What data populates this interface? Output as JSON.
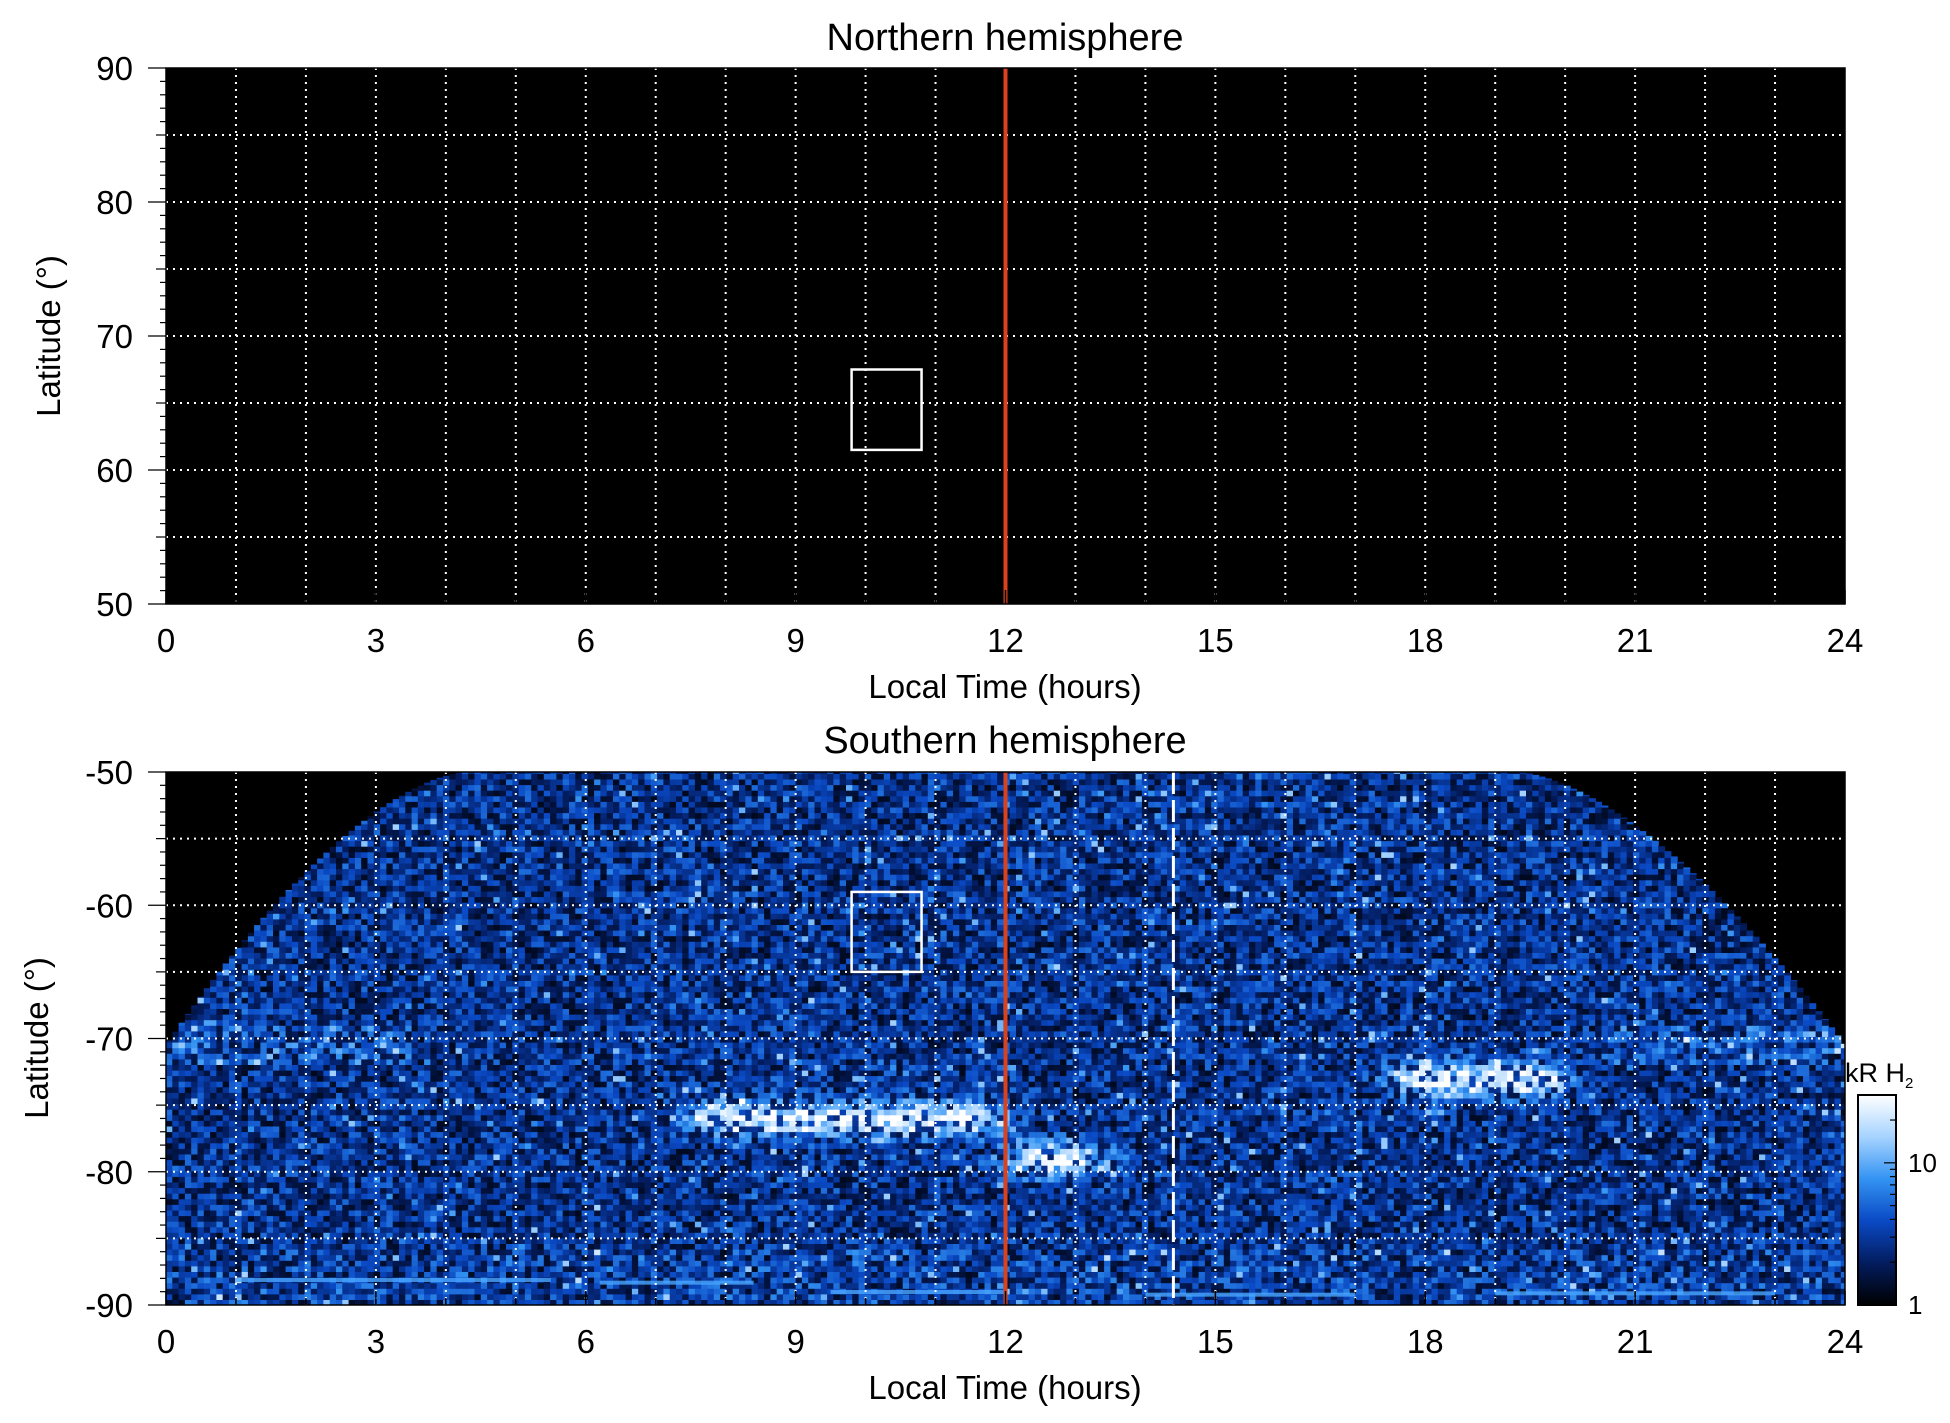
{
  "chart_data": [
    {
      "type": "heatmap",
      "title": "Northern hemisphere",
      "xlabel": "Local Time (hours)",
      "ylabel": "Latitude (°)",
      "xlim": [
        0,
        24
      ],
      "ylim": [
        50,
        90
      ],
      "x_ticks": [
        "0",
        "3",
        "6",
        "9",
        "12",
        "15",
        "18",
        "21",
        "24"
      ],
      "y_ticks": [
        "50",
        "60",
        "70",
        "80",
        "90"
      ],
      "y_tick_values": [
        50,
        60,
        70,
        80,
        90
      ],
      "grid": true,
      "background": "#000000",
      "noon_line_x": 12,
      "noon_line_color": "#d9421e",
      "box": {
        "x": [
          9.8,
          10.8
        ],
        "y": [
          61.5,
          67.5
        ]
      },
      "data": "no emission"
    },
    {
      "type": "heatmap",
      "title": "Southern hemisphere",
      "xlabel": "Local Time (hours)",
      "ylabel": "Latitude (°)",
      "xlim": [
        0,
        24
      ],
      "ylim": [
        -90,
        -50
      ],
      "x_ticks": [
        "0",
        "3",
        "6",
        "9",
        "12",
        "15",
        "18",
        "21",
        "24"
      ],
      "y_ticks": [
        "-50",
        "-60",
        "-70",
        "-80",
        "-90"
      ],
      "y_tick_values": [
        -50,
        -60,
        -70,
        -80,
        -90
      ],
      "grid": true,
      "noon_line_x": 12,
      "noon_line_color": "#d9421e",
      "dashed_line_x": 14.4,
      "box": {
        "x": [
          9.8,
          10.8
        ],
        "y": [
          -65,
          -59
        ]
      },
      "colorbar": {
        "label": "kR H",
        "label_subscript": "2",
        "ticks": [
          "1",
          "10"
        ],
        "tick_values": [
          1,
          10
        ],
        "range": [
          1,
          30
        ],
        "scale": "log",
        "colors": [
          "#000000",
          "#031c5e",
          "#0a49c4",
          "#3393f2",
          "#a6d3ff",
          "#ffffff"
        ]
      },
      "features": [
        {
          "name": "auroral arc",
          "x": [
            7.5,
            12
          ],
          "y": -76,
          "intensity": "high"
        },
        {
          "name": "auroral arc",
          "x": [
            12,
            13.5
          ],
          "y": -79,
          "intensity": "high"
        },
        {
          "name": "auroral arc",
          "x": [
            17.5,
            20
          ],
          "y": -73,
          "intensity": "high"
        }
      ]
    }
  ]
}
